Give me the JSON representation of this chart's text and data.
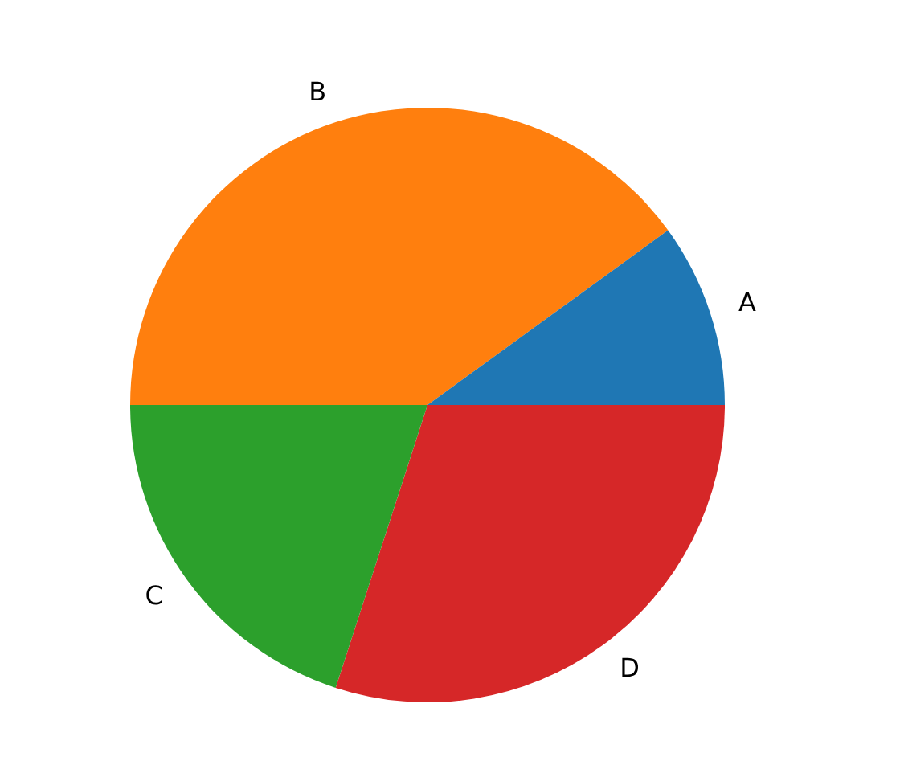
{
  "chart_data": {
    "type": "pie",
    "categories": [
      "A",
      "B",
      "C",
      "D"
    ],
    "values": [
      10,
      40,
      20,
      30
    ],
    "colors": [
      "#1f77b4",
      "#ff7f0e",
      "#2ca02c",
      "#d62728"
    ],
    "legend": false
  }
}
